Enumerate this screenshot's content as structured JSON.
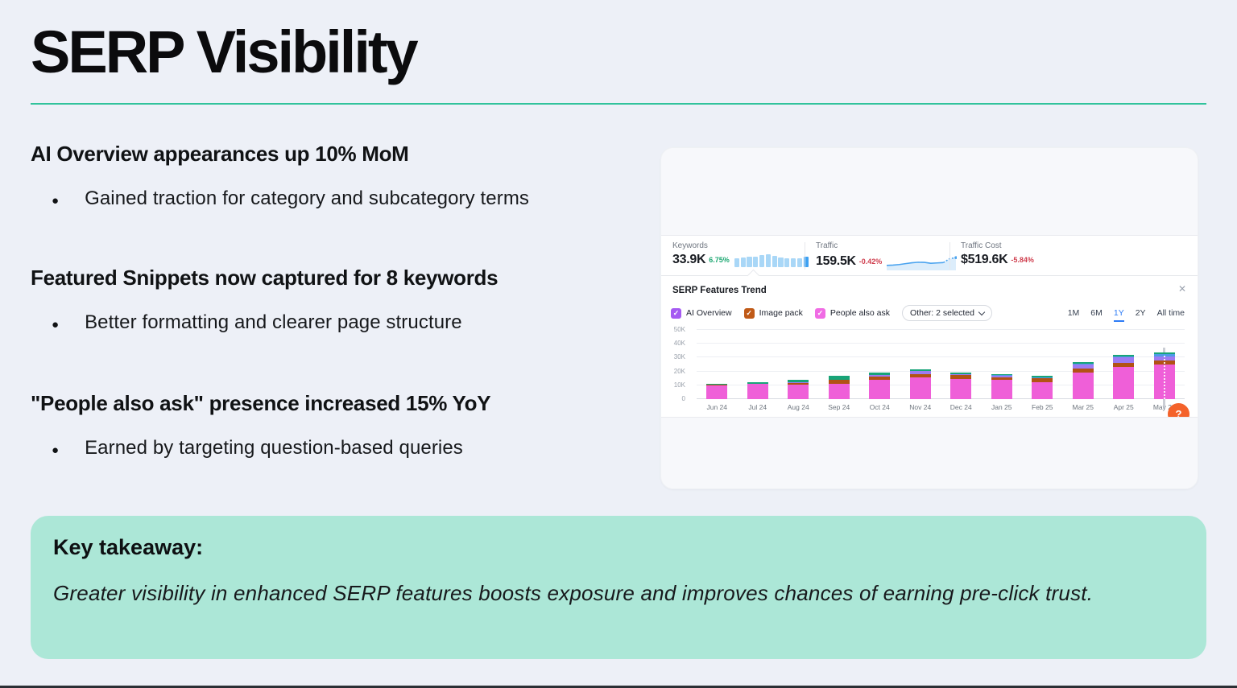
{
  "slide": {
    "title": "SERP Visibility",
    "bullet_glyph": "●",
    "accent_color": "#31C39C",
    "takeaway_bg": "#ACE7D7",
    "sections": [
      {
        "heading": "AI Overview appearances up 10% MoM",
        "bullet": "Gained traction for category and subcategory terms"
      },
      {
        "heading": "Featured Snippets now captured for 8 keywords",
        "bullet": "Better formatting and clearer page structure"
      },
      {
        "heading": "\"People also ask\" presence increased 15% YoY",
        "bullet": "Earned by targeting question-based queries"
      }
    ],
    "takeaway": {
      "label": "Key takeaway:",
      "text": "Greater visibility in enhanced SERP features boosts exposure and improves chances of earning pre-click trust."
    }
  },
  "dashboard": {
    "stats": [
      {
        "label": "Keywords",
        "value": "33.9K",
        "delta": "6.75%",
        "direction": "up"
      },
      {
        "label": "Traffic",
        "value": "159.5K",
        "delta": "-0.42%",
        "direction": "down"
      },
      {
        "label": "Traffic Cost",
        "value": "$519.6K",
        "delta": "-5.84%",
        "direction": "down"
      }
    ],
    "keywords_spark": [
      62,
      66,
      74,
      76,
      84,
      90,
      80,
      66,
      63,
      63,
      63,
      76
    ],
    "traffic_spark": [
      72,
      70,
      67,
      62,
      57,
      54,
      55,
      60,
      58,
      56,
      34,
      28
    ],
    "panel": {
      "title": "SERP Features Trend",
      "close_glyph": "✕",
      "help_glyph": "?",
      "filters": [
        {
          "label": "AI Overview",
          "color": "#A55BF2"
        },
        {
          "label": "Image pack",
          "color": "#C05A17"
        },
        {
          "label": "People also ask",
          "color": "#F06CE4"
        }
      ],
      "other_dropdown": "Other: 2 selected",
      "ranges": [
        "1M",
        "6M",
        "1Y",
        "2Y",
        "All time"
      ],
      "active_range": "1Y"
    }
  },
  "chart_data": {
    "type": "bar",
    "stacked": true,
    "title": "SERP Features Trend",
    "categories": [
      "Jun 24",
      "Jul 24",
      "Aug 24",
      "Sep 24",
      "Oct 24",
      "Nov 24",
      "Dec 24",
      "Jan 25",
      "Feb 25",
      "Mar 25",
      "Apr 25",
      "May 25"
    ],
    "series": [
      {
        "name": "People also ask",
        "color": "#EF5FD8",
        "values": [
          10000,
          10900,
          10400,
          11000,
          14000,
          15800,
          14800,
          13800,
          12000,
          19000,
          23500,
          25000
        ]
      },
      {
        "name": "Image pack",
        "color": "#B25214",
        "values": [
          300,
          400,
          1500,
          2700,
          2000,
          2000,
          2400,
          2000,
          2900,
          3000,
          2700,
          3000
        ]
      },
      {
        "name": "AI Overview",
        "color": "#9D7BF2",
        "values": [
          0,
          0,
          200,
          400,
          1200,
          2400,
          600,
          1200,
          300,
          3300,
          4000,
          2800
        ]
      },
      {
        "name": "Other (blue)",
        "color": "#4D9BE8",
        "values": [
          0,
          0,
          200,
          0,
          0,
          0,
          300,
          300,
          600,
          300,
          400,
          1600
        ]
      },
      {
        "name": "Other (green)",
        "color": "#18A478",
        "values": [
          600,
          900,
          1400,
          2800,
          2200,
          1400,
          900,
          900,
          1200,
          1400,
          1500,
          1200
        ]
      }
    ],
    "ylim": [
      0,
      50000
    ],
    "yticks": [
      "0",
      "10K",
      "20K",
      "30K",
      "40K",
      "50K"
    ],
    "grid": true,
    "legend_position": "top",
    "hover_category": "May 25"
  }
}
